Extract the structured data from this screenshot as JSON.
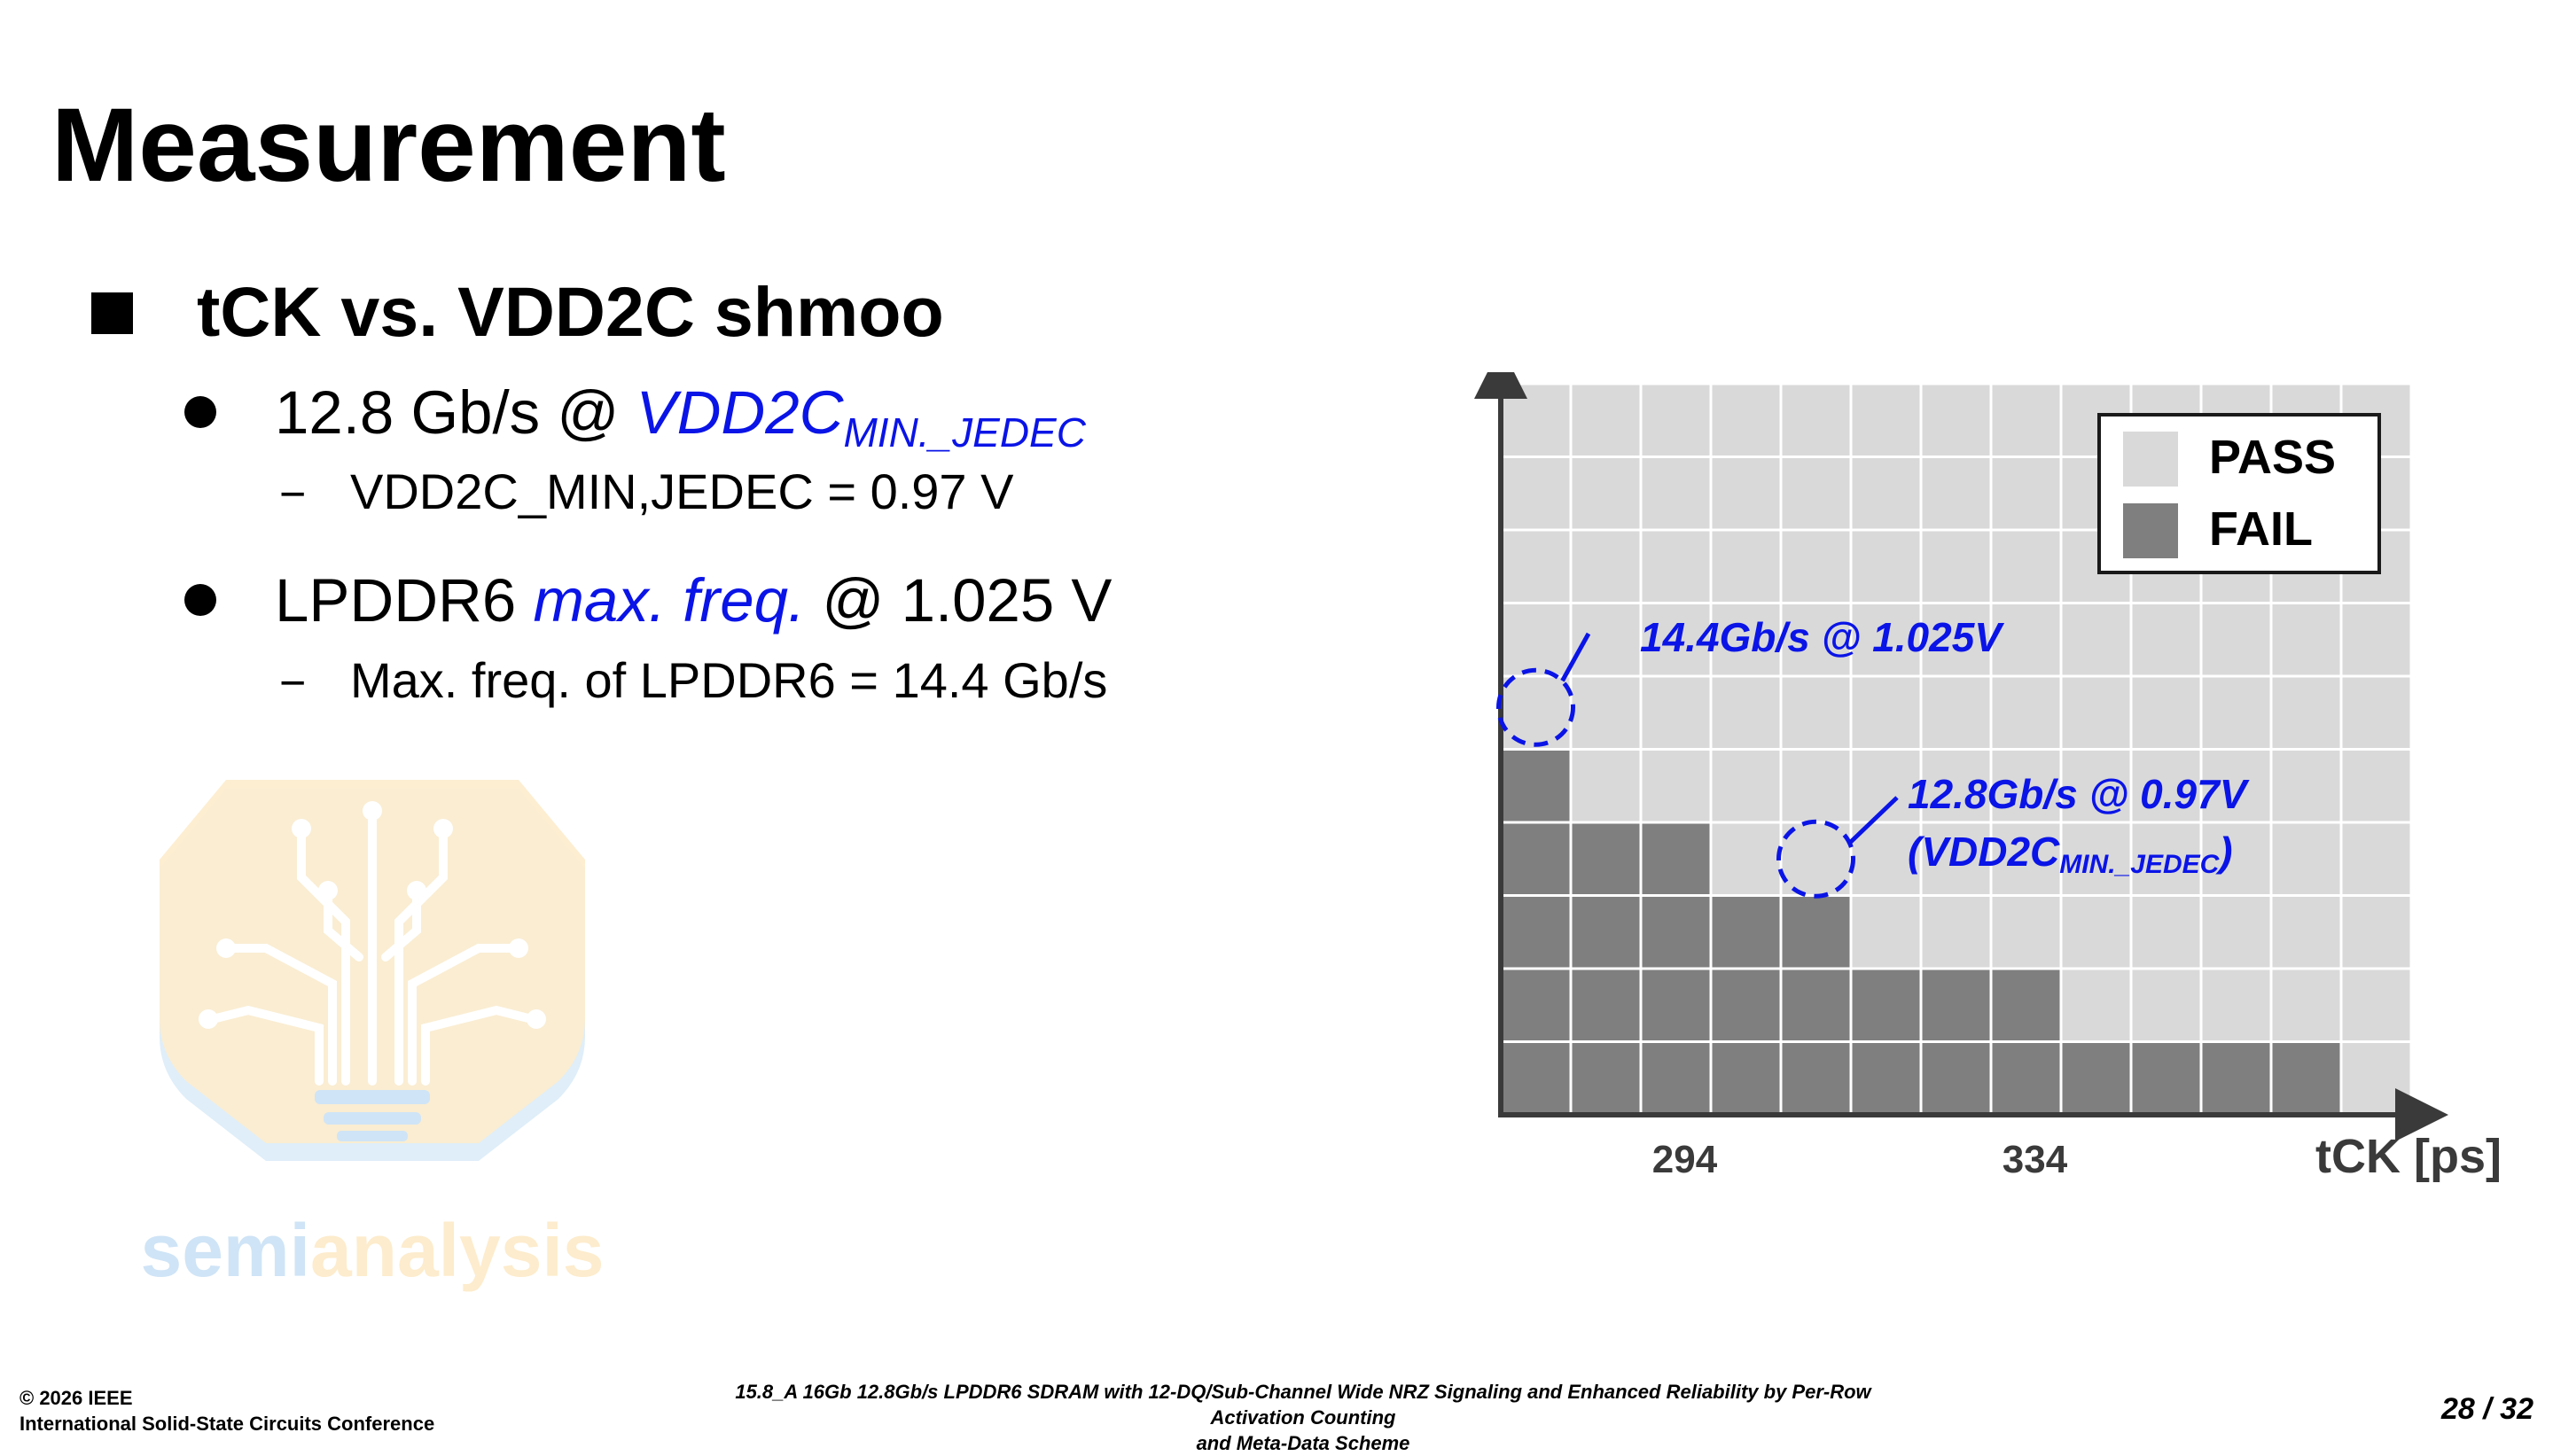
{
  "slide": {
    "title": "Measurement",
    "heading": "tCK vs. VDD2C shmoo",
    "bullets": [
      {
        "prefix": "12.8 Gb/s @ ",
        "highlight": "VDD2C",
        "highlight_sub": "MIN._JEDEC",
        "suffix": "",
        "sub_item": "VDD2C_MIN,JEDEC = 0.97 V"
      },
      {
        "prefix": "LPDDR6 ",
        "highlight": "max. freq.",
        "highlight_sub": "",
        "suffix": " @ 1.025 V",
        "sub_item": "Max. freq. of LPDDR6 = 14.4 Gb/s"
      }
    ],
    "dash_glyph": "−"
  },
  "watermark": {
    "text_part1": "semi",
    "text_part2": "analysis"
  },
  "chart_data": {
    "type": "heatmap",
    "columns": 13,
    "rows": 10,
    "status_per_column_from_left": "number of FAIL cells stacked from the bottom row; all other cells PASS",
    "fail_cells_per_column": [
      5,
      4,
      4,
      3,
      3,
      2,
      2,
      2,
      1,
      1,
      1,
      1,
      0
    ],
    "xlabel": "tCK [ps]",
    "x_tick_labels": [
      "294",
      "334"
    ],
    "ylabel": "",
    "legend": [
      {
        "label": "PASS",
        "color": "#d9d9d9"
      },
      {
        "label": "FAIL",
        "color": "#7f7f7f"
      }
    ],
    "legend_position": "top-right",
    "annotations": [
      {
        "text": "14.4Gb/s @ 1.025V",
        "marks_column": 1,
        "marks_row_from_bottom": 6
      },
      {
        "text_line1": "12.8Gb/s @ 0.97V",
        "text_line2_main": "(VDD2C",
        "text_line2_sub": "MIN._JEDEC",
        "text_line2_end": ")",
        "marks_column": 5,
        "marks_row_from_bottom": 4
      }
    ],
    "colors": {
      "pass": "#d9d9d9",
      "fail": "#7f7f7f",
      "grid": "#ffffff",
      "axis": "#3a3a3a",
      "annotation": "#0a14e6"
    }
  },
  "footer": {
    "line1": "© 2026 IEEE",
    "line2": "International Solid-State Circuits Conference",
    "paper_line1": "15.8_A 16Gb 12.8Gb/s LPDDR6 SDRAM with 12-DQ/Sub-Channel Wide NRZ Signaling and Enhanced Reliability by Per-Row Activation Counting",
    "paper_line2": "and Meta-Data Scheme",
    "page": "28 / 32"
  }
}
